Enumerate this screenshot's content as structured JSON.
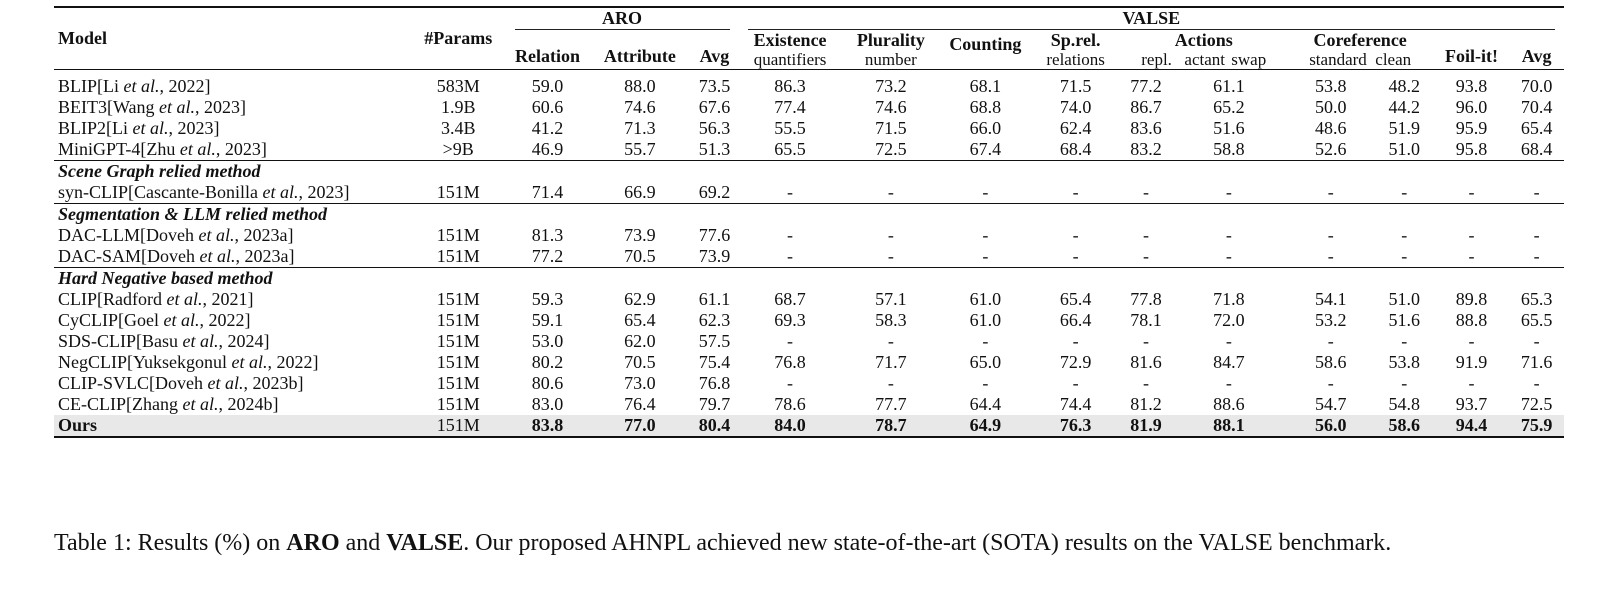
{
  "header": {
    "model": "Model",
    "params": "#Params",
    "aro": "ARO",
    "valse": "VALSE",
    "relation": "Relation",
    "attribute": "Attribute",
    "avg": "Avg",
    "existence": "Existence",
    "existence_sub": "quantifiers",
    "plurality": "Plurality",
    "plurality_sub": "number",
    "counting": "Counting",
    "sprel": "Sp.rel.",
    "sprel_sub": "relations",
    "actions": "Actions",
    "repl": "repl.",
    "actant": "actant swap",
    "coreference": "Coreference",
    "standard": "standard",
    "clean": "clean",
    "foil": "Foil-it!",
    "avg2": "Avg"
  },
  "sections": [
    {
      "title": "",
      "rows": [
        {
          "pre": "BLIP[Li ",
          "em": "et al.",
          "post": ", 2022]",
          "cells": [
            "583M",
            "59.0",
            "88.0",
            "73.5",
            "86.3",
            "73.2",
            "68.1",
            "71.5",
            "77.2",
            "61.1",
            "53.8",
            "48.2",
            "93.8",
            "70.0"
          ]
        },
        {
          "pre": "BEIT3[Wang ",
          "em": "et al.",
          "post": ", 2023]",
          "cells": [
            "1.9B",
            "60.6",
            "74.6",
            "67.6",
            "77.4",
            "74.6",
            "68.8",
            "74.0",
            "86.7",
            "65.2",
            "50.0",
            "44.2",
            "96.0",
            "70.4"
          ]
        },
        {
          "pre": "BLIP2[Li ",
          "em": "et al.",
          "post": ", 2023]",
          "cells": [
            "3.4B",
            "41.2",
            "71.3",
            "56.3",
            "55.5",
            "71.5",
            "66.0",
            "62.4",
            "83.6",
            "51.6",
            "48.6",
            "51.9",
            "95.9",
            "65.4"
          ]
        },
        {
          "pre": "MiniGPT-4[Zhu ",
          "em": "et al.",
          "post": ", 2023]",
          "cells": [
            ">9B",
            "46.9",
            "55.7",
            "51.3",
            "65.5",
            "72.5",
            "67.4",
            "68.4",
            "83.2",
            "58.8",
            "52.6",
            "51.0",
            "95.8",
            "68.4"
          ]
        }
      ]
    },
    {
      "title": "Scene Graph relied method",
      "rows": [
        {
          "pre": "syn-CLIP[Cascante-Bonilla ",
          "em": "et al.",
          "post": ", 2023]",
          "cells": [
            "151M",
            "71.4",
            "66.9",
            "69.2",
            "-",
            "-",
            "-",
            "-",
            "-",
            "-",
            "-",
            "-",
            "-",
            "-"
          ]
        }
      ]
    },
    {
      "title": "Segmentation & LLM relied method",
      "rows": [
        {
          "pre": "DAC-LLM[Doveh ",
          "em": "et al.",
          "post": ", 2023a]",
          "cells": [
            "151M",
            "81.3",
            "73.9",
            "77.6",
            "-",
            "-",
            "-",
            "-",
            "-",
            "-",
            "-",
            "-",
            "-",
            "-"
          ]
        },
        {
          "pre": "DAC-SAM[Doveh ",
          "em": "et al.",
          "post": ", 2023a]",
          "cells": [
            "151M",
            "77.2",
            "70.5",
            "73.9",
            "-",
            "-",
            "-",
            "-",
            "-",
            "-",
            "-",
            "-",
            "-",
            "-"
          ]
        }
      ]
    },
    {
      "title": "Hard Negative based method",
      "rows": [
        {
          "pre": "CLIP[Radford ",
          "em": "et al.",
          "post": ", 2021]",
          "cells": [
            "151M",
            "59.3",
            "62.9",
            "61.1",
            "68.7",
            "57.1",
            "61.0",
            "65.4",
            "77.8",
            "71.8",
            "54.1",
            "51.0",
            "89.8",
            "65.3"
          ]
        },
        {
          "pre": "CyCLIP[Goel ",
          "em": "et al.",
          "post": ", 2022]",
          "cells": [
            "151M",
            "59.1",
            "65.4",
            "62.3",
            "69.3",
            "58.3",
            "61.0",
            "66.4",
            "78.1",
            "72.0",
            "53.2",
            "51.6",
            "88.8",
            "65.5"
          ]
        },
        {
          "pre": "SDS-CLIP[Basu ",
          "em": "et al.",
          "post": ", 2024]",
          "cells": [
            "151M",
            "53.0",
            "62.0",
            "57.5",
            "-",
            "-",
            "-",
            "-",
            "-",
            "-",
            "-",
            "-",
            "-",
            "-"
          ]
        },
        {
          "pre": "NegCLIP[Yuksekgonul ",
          "em": "et al.",
          "post": ", 2022]",
          "cells": [
            "151M",
            "80.2",
            "70.5",
            "75.4",
            "76.8",
            "71.7",
            "65.0",
            "72.9",
            "81.6",
            "84.7",
            "58.6",
            "53.8",
            "91.9",
            "71.6"
          ]
        },
        {
          "pre": "CLIP-SVLC[Doveh ",
          "em": "et al.",
          "post": ", 2023b]",
          "cells": [
            "151M",
            "80.6",
            "73.0",
            "76.8",
            "-",
            "-",
            "-",
            "-",
            "-",
            "-",
            "-",
            "-",
            "-",
            "-"
          ]
        },
        {
          "pre": "CE-CLIP[Zhang ",
          "em": "et al.",
          "post": ", 2024b]",
          "cells": [
            "151M",
            "83.0",
            "76.4",
            "79.7",
            "78.6",
            "77.7",
            "64.4",
            "74.4",
            "81.2",
            "88.6",
            "54.7",
            "54.8",
            "93.7",
            "72.5"
          ]
        }
      ]
    }
  ],
  "ours": {
    "label": "Ours",
    "cells": [
      "151M",
      "83.8",
      "77.0",
      "80.4",
      "84.0",
      "78.7",
      "64.9",
      "76.3",
      "81.9",
      "88.1",
      "56.0",
      "58.6",
      "94.4",
      "75.9"
    ]
  },
  "caption": {
    "prefix": "Table 1: Results (%) on ",
    "b1": "ARO",
    "mid": " and ",
    "b2": "VALSE",
    "suffix": ". Our proposed AHNPL achieved new state-of-the-art (SOTA) results on the VALSE benchmark."
  }
}
